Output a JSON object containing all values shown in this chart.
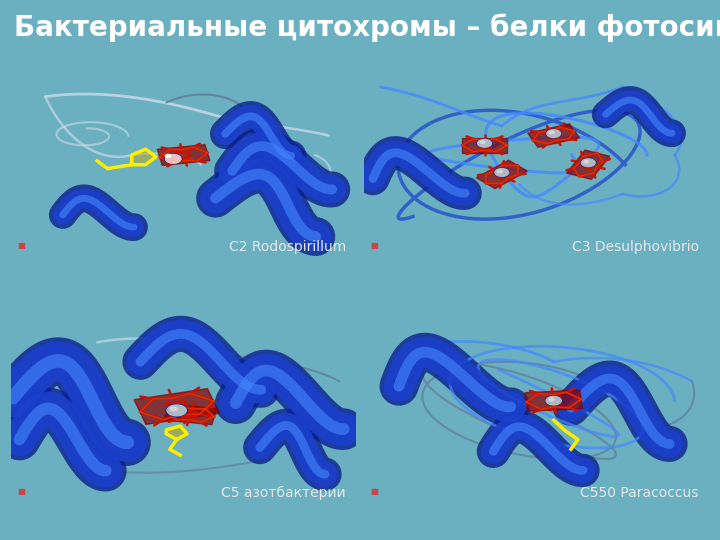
{
  "title": "Бактериальные цитохромы – белки фотосинтеза",
  "background_color": "#6ab0c0",
  "title_color": "#ffffff",
  "title_fontsize": 20,
  "title_fontweight": "bold",
  "panel_bg": "#04080f",
  "captions": [
    "C2 Rodospirillum",
    "C3 Desulphovibrio",
    "C5 азотбактерии",
    "C550 Paracoccus"
  ],
  "caption_color": "#e8e8e8",
  "caption_fontsize": 10,
  "colors": {
    "helix_blue_dark": "#0a1f8f",
    "helix_blue_mid": "#1a40cc",
    "helix_blue_bright": "#2060ee",
    "helix_blue_light": "#4488ff",
    "loop_white": "#c8d8e8",
    "loop_dim": "#607090",
    "heme_red_dark": "#880000",
    "heme_red": "#cc1100",
    "heme_orange": "#ee4400",
    "metal_gray": "#b0b8c0",
    "metal_white": "#d8dce0",
    "yellow": "#ffee00",
    "yellow_dark": "#ccaa00",
    "pink_white": "#ffcccc"
  }
}
